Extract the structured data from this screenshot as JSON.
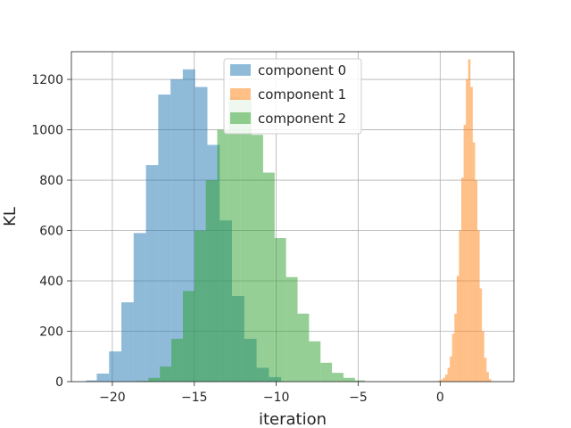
{
  "chart_data": {
    "type": "bar",
    "title": "",
    "xlabel": "iteration",
    "ylabel": "KL",
    "xlim": [
      -22.5,
      4.5
    ],
    "ylim": [
      0,
      1310
    ],
    "grid": true,
    "legend_position": "top-center",
    "xticks": [
      -20,
      -15,
      -10,
      -5,
      0
    ],
    "xtick_labels": [
      "−20",
      "−15",
      "−10",
      "−5",
      "0"
    ],
    "yticks": [
      0,
      200,
      400,
      600,
      800,
      1000,
      1200
    ],
    "ytick_labels": [
      "0",
      "200",
      "400",
      "600",
      "800",
      "1000",
      "1200"
    ],
    "series": [
      {
        "name": "component 0",
        "color": "#1f77b4",
        "opacity": 0.5,
        "bin_edges": [
          -21.6,
          -20.95,
          -20.2,
          -19.45,
          -18.7,
          -17.95,
          -17.2,
          -16.45,
          -15.7,
          -14.95,
          -14.2,
          -13.45,
          -12.7,
          -11.95,
          -11.2,
          -10.45,
          -9.7
        ],
        "counts": [
          5,
          32,
          120,
          315,
          590,
          860,
          1140,
          1200,
          1240,
          1170,
          940,
          640,
          340,
          170,
          55,
          18
        ]
      },
      {
        "name": "component 1",
        "color": "#ff7f0e",
        "opacity": 0.5,
        "bin_edges": [
          -0.25,
          -0.11,
          0.03,
          0.17,
          0.31,
          0.45,
          0.59,
          0.73,
          0.87,
          1.01,
          1.15,
          1.29,
          1.43,
          1.57,
          1.71,
          1.85,
          1.99,
          2.13,
          2.27,
          2.41,
          2.55,
          2.69,
          2.83,
          2.97,
          3.11
        ],
        "counts": [
          2,
          5,
          8,
          15,
          28,
          55,
          100,
          190,
          270,
          420,
          600,
          810,
          1020,
          1200,
          1280,
          1170,
          950,
          800,
          600,
          370,
          200,
          95,
          38,
          10
        ]
      },
      {
        "name": "component 2",
        "color": "#2ca02c",
        "opacity": 0.5,
        "bin_edges": [
          -18.5,
          -17.8,
          -17.1,
          -16.4,
          -15.7,
          -15.0,
          -14.3,
          -13.6,
          -12.9,
          -12.2,
          -11.5,
          -10.8,
          -10.1,
          -9.4,
          -8.7,
          -8.0,
          -7.3,
          -6.6,
          -5.9,
          -5.2,
          -4.6
        ],
        "counts": [
          3,
          15,
          60,
          170,
          360,
          600,
          800,
          1000,
          1130,
          1120,
          980,
          830,
          570,
          415,
          270,
          160,
          75,
          35,
          15,
          5
        ]
      }
    ]
  }
}
